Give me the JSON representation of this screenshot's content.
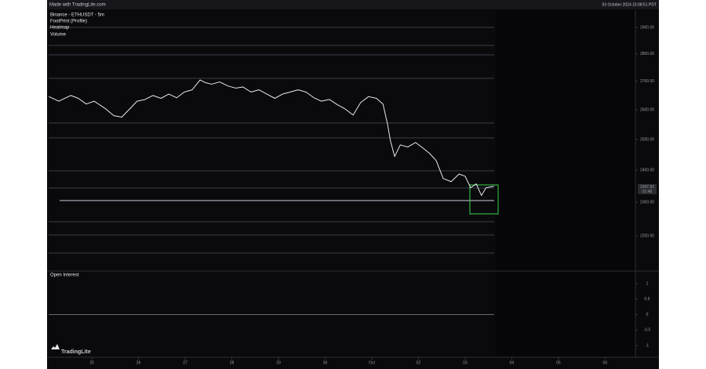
{
  "header": {
    "left": "Made with TradingLite.com",
    "right": "03 October 2024 15:08:51 PDT"
  },
  "brand": "TradingLite",
  "chart_data": [
    {
      "type": "line",
      "title": "Binance - ETHUSDT - 5m",
      "layers": [
        "FootPrint (Profile)",
        "Heatmap",
        "Volume"
      ],
      "last_price_label": "2347.82",
      "countdown": "01:48",
      "log_scale": true,
      "x": [
        24.08,
        24.29,
        24.55,
        24.71,
        24.88,
        25.05,
        25.3,
        25.47,
        25.64,
        25.81,
        25.97,
        26.14,
        26.31,
        26.48,
        26.65,
        26.82,
        26.98,
        27.15,
        27.32,
        27.44,
        27.57,
        27.74,
        27.91,
        28.08,
        28.24,
        28.41,
        28.58,
        28.75,
        28.92,
        29.09,
        29.25,
        29.42,
        29.59,
        29.76,
        29.92,
        30.09,
        30.26,
        30.43,
        30.6,
        30.76,
        30.93,
        31.1,
        31.24,
        31.34,
        31.4,
        31.49,
        31.61,
        31.77,
        31.94,
        32.11,
        32.24,
        32.38,
        32.53,
        32.7,
        32.87,
        33.0,
        33.12,
        33.24,
        33.35,
        33.45,
        33.62
      ],
      "series": [
        {
          "name": "ETHUSDT",
          "color": "#e8e8ee",
          "values": [
            2646,
            2630,
            2650,
            2640,
            2620,
            2630,
            2603,
            2580,
            2575,
            2603,
            2630,
            2636,
            2650,
            2640,
            2655,
            2642,
            2662,
            2670,
            2705,
            2695,
            2690,
            2698,
            2684,
            2676,
            2680,
            2662,
            2670,
            2655,
            2640,
            2655,
            2662,
            2670,
            2662,
            2642,
            2630,
            2636,
            2618,
            2603,
            2582,
            2625,
            2646,
            2640,
            2620,
            2549,
            2495,
            2444,
            2482,
            2475,
            2490,
            2470,
            2454,
            2431,
            2374,
            2364,
            2388,
            2381,
            2345,
            2357,
            2321,
            2345,
            2350
          ]
        }
      ],
      "xlim": [
        24.04,
        36.65
      ],
      "xticks": [
        25,
        26,
        27,
        28,
        29,
        30,
        {
          "value": 31,
          "label": "Oct"
        },
        {
          "value": 32,
          "label": "02"
        },
        {
          "value": 33,
          "label": "03"
        },
        {
          "value": 34,
          "label": "04"
        },
        {
          "value": 35,
          "label": "05"
        },
        {
          "value": 36,
          "label": "06"
        }
      ],
      "ylim": [
        2102,
        2964
      ],
      "yticks": [
        {
          "value": 2200,
          "label": "2200.00"
        },
        {
          "value": 2300,
          "label": "2300.00"
        },
        {
          "value": 2400,
          "label": "2400.00"
        },
        {
          "value": 2500,
          "label": "2500.00"
        },
        {
          "value": 2600,
          "label": "2600.00"
        },
        {
          "value": 2700,
          "label": "2700.00"
        },
        {
          "value": 2800,
          "label": "2800.00"
        },
        {
          "value": 2900,
          "label": "2900.00"
        }
      ]
    },
    {
      "type": "line",
      "title": "Open Interest",
      "x": [
        24.08,
        33.62
      ],
      "series": [
        {
          "name": "Open Interest",
          "color": "#8a8a95",
          "values": [
            0,
            0
          ]
        }
      ],
      "xlim": [
        24.04,
        36.65
      ],
      "ylim": [
        -1.35,
        1.38
      ],
      "yticks": [
        -1,
        -0.5,
        0,
        0.5,
        1
      ]
    }
  ]
}
